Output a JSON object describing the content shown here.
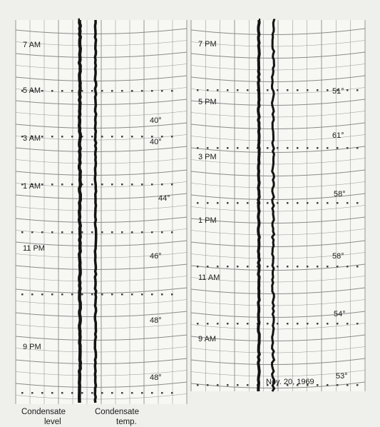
{
  "chart_data": [
    {
      "type": "strip-chart",
      "time_labels": [
        "7 AM",
        "5 AM",
        "3 AM",
        "1 AM",
        "11 PM",
        "9 PM"
      ],
      "temp_labels": [
        "40°",
        "40°",
        "44°",
        "46°",
        "48°",
        "48°"
      ],
      "traces": [
        "Condensate level",
        "Condensate temp."
      ]
    },
    {
      "type": "strip-chart",
      "time_labels": [
        "7 PM",
        "5 PM",
        "3 PM",
        "1 PM",
        "11 AM",
        "9 AM"
      ],
      "temp_labels": [
        "51°",
        "61°",
        "58°",
        "58°",
        "54°",
        "53°"
      ],
      "date_label": "Nov. 20, 1969"
    }
  ],
  "footer": {
    "level_line1": "Condensate",
    "level_line2": "level",
    "temp_line1": "Condensate",
    "temp_line2": "temp."
  },
  "colors": {
    "paper": "#f7f7f4",
    "grid": "#8a8a8a",
    "trace": "#141414"
  }
}
